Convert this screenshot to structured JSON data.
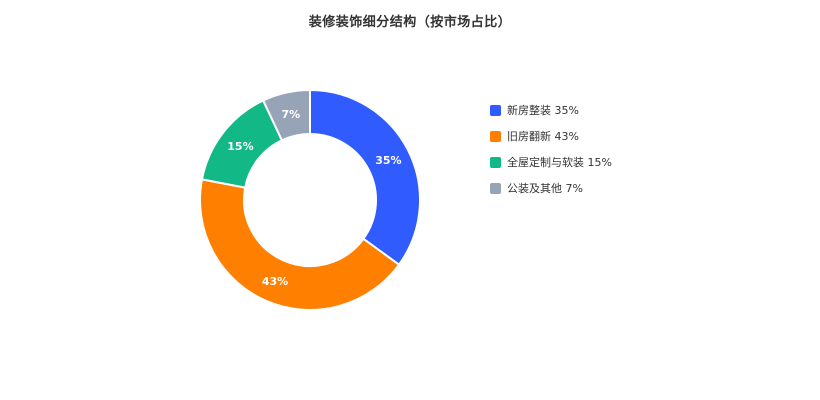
{
  "chart_data": {
    "type": "pie",
    "title": "装修装饰细分结构（按市场占比）",
    "subtitle": "",
    "donut": true,
    "legend_position": "right",
    "categories": [
      "新房整装",
      "旧房翻新",
      "全屋定制与软装",
      "公装及其他"
    ],
    "values": [
      35,
      43,
      15,
      7
    ],
    "unit": "%",
    "slice_labels": [
      "35%",
      "43%",
      "15%",
      "7%"
    ],
    "legend_entries": [
      "新房整装 35%",
      "旧房翻新 43%",
      "全屋定制与软装 15%",
      "公装及其他 7%"
    ],
    "colors": [
      "#2f5bff",
      "#ff7f00",
      "#12b886",
      "#97a3b6"
    ]
  }
}
